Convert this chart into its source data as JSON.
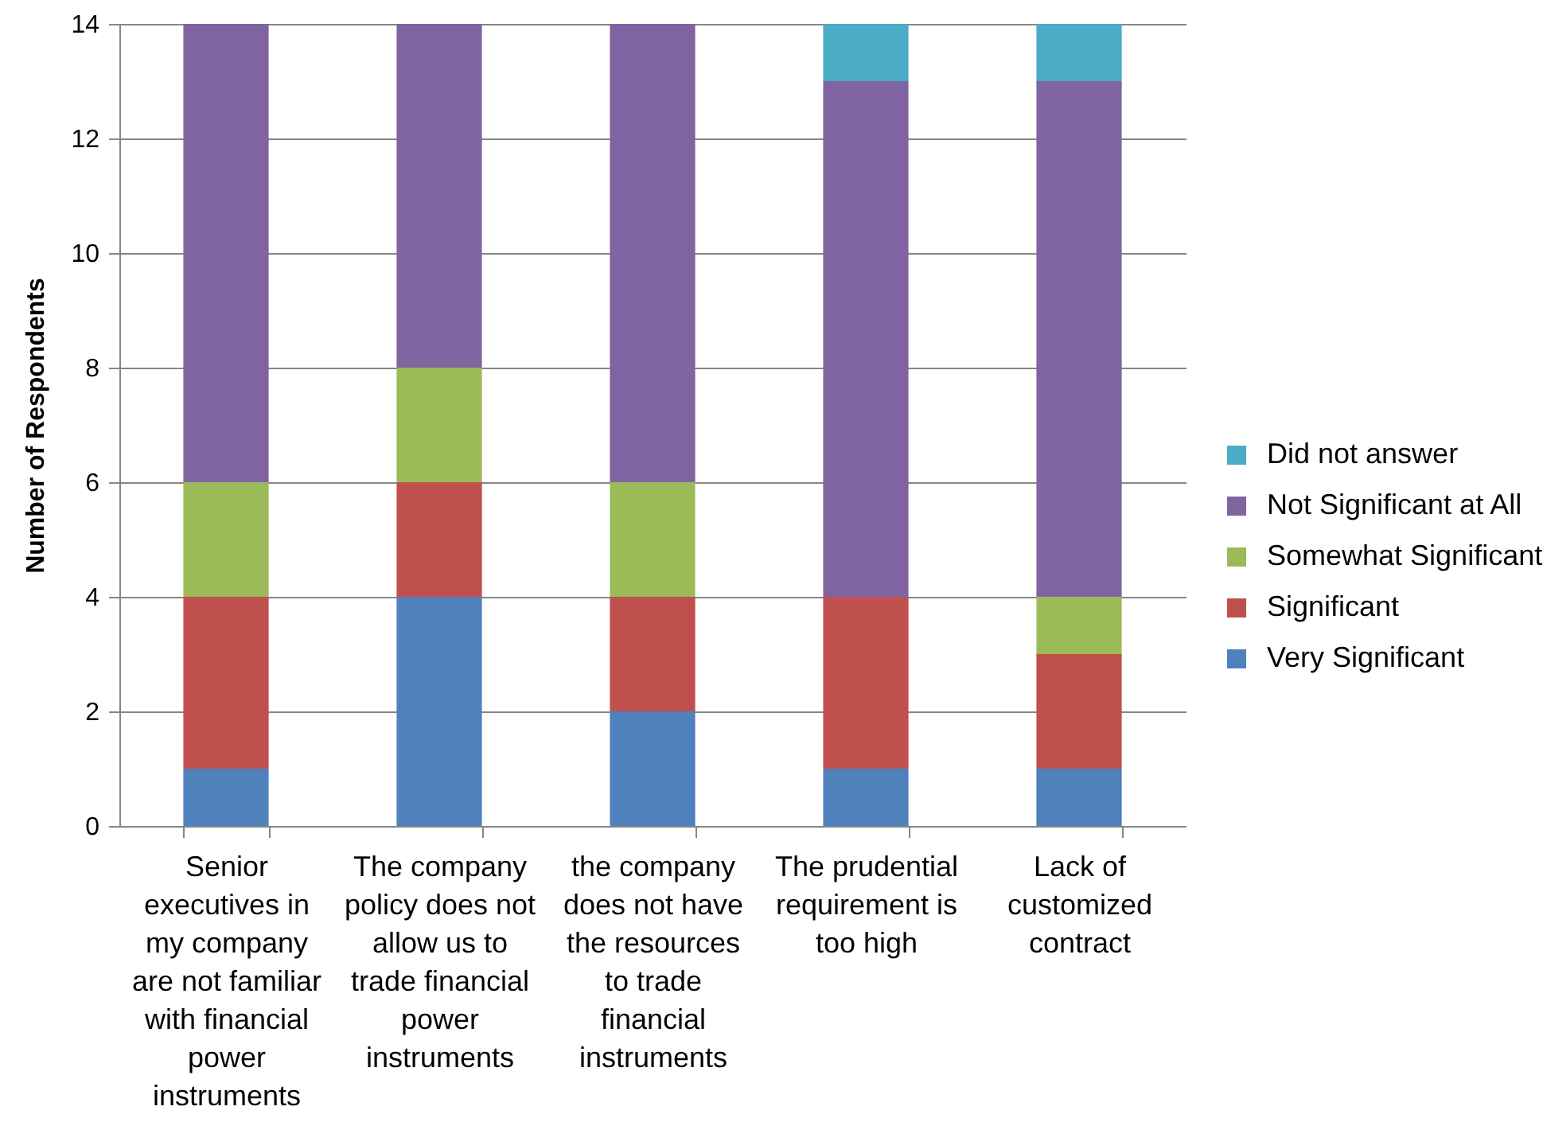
{
  "chart_data": {
    "type": "bar",
    "stacked": true,
    "ylabel": "Number of Respondents",
    "categories": [
      "Senior executives in my company are not familiar with financial power instruments",
      "The company policy does not allow us to trade financial power instruments",
      "the company does not have the resources to trade financial instruments",
      "The prudential requirement is too high",
      "Lack of customized contract"
    ],
    "series": [
      {
        "name": "Very Significant",
        "color": "#4f81bd",
        "values": [
          1,
          4,
          2,
          1,
          1
        ]
      },
      {
        "name": "Significant",
        "color": "#c0504d",
        "values": [
          3,
          2,
          2,
          3,
          2
        ]
      },
      {
        "name": "Somewhat Significant",
        "color": "#9bbb59",
        "values": [
          2,
          2,
          2,
          0,
          1
        ]
      },
      {
        "name": "Not Significant at All",
        "color": "#8064a2",
        "values": [
          8,
          6,
          8,
          9,
          9
        ]
      },
      {
        "name": "Did not answer",
        "color": "#4bacc6",
        "values": [
          0,
          0,
          0,
          1,
          1
        ]
      }
    ],
    "ylim": [
      0,
      14
    ],
    "yticks": [
      0,
      2,
      4,
      6,
      8,
      10,
      12,
      14
    ],
    "grid": "y",
    "legend": "right"
  }
}
